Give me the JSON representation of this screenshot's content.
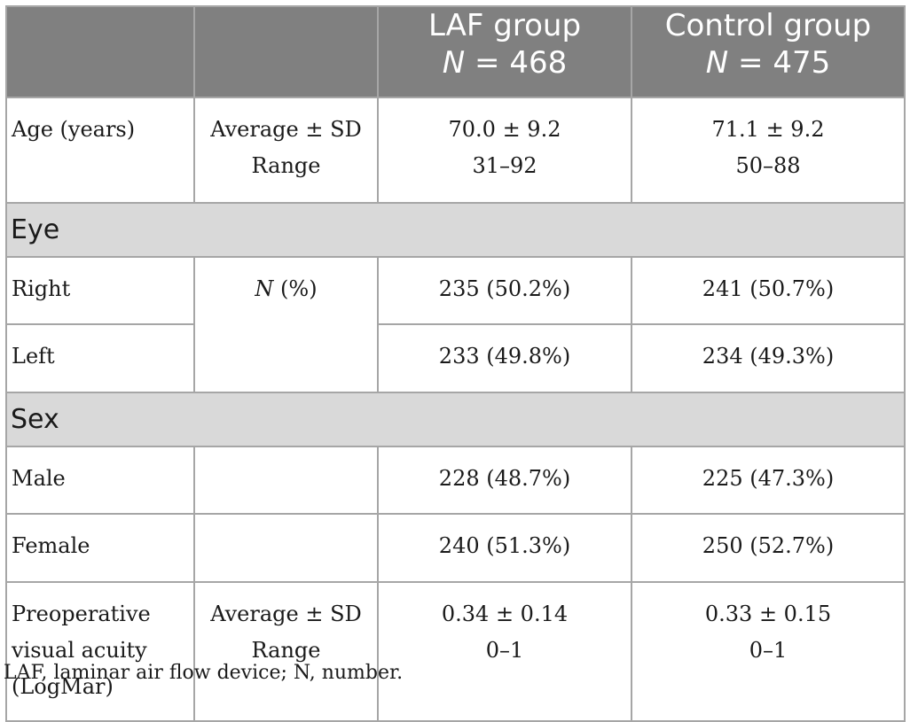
{
  "header": {
    "col1": "",
    "col2": "",
    "col3": {
      "name": "LAF group",
      "n_label": "N",
      "n_value": " = 468"
    },
    "col4": {
      "name": "Control group",
      "n_label": "N",
      "n_value": " = 475"
    }
  },
  "rows": {
    "age": {
      "label": "Age (years)",
      "stat_line1": "Average ± SD",
      "stat_line2": "Range",
      "laf_line1": "70.0 ± 9.2",
      "laf_line2": "31–92",
      "control_line1": "71.1 ± 9.2",
      "control_line2": "50–88"
    },
    "eye_section": "Eye",
    "right": {
      "label": "Right",
      "laf": "235 (50.2%)",
      "control": "241 (50.7%)"
    },
    "left": {
      "label": "Left",
      "laf": "233 (49.8%)",
      "control": "234 (49.3%)"
    },
    "eye_stat": {
      "n": "N",
      "pct": " (%)"
    },
    "sex_section": "Sex",
    "male": {
      "label": "Male",
      "laf": "228 (48.7%)",
      "control": "225 (47.3%)"
    },
    "female": {
      "label": "Female",
      "laf": "240 (51.3%)",
      "control": "250 (52.7%)"
    },
    "preop": {
      "label_line1": "Preoperative",
      "label_line2": "visual acuity",
      "label_line3": "(LogMar)",
      "stat_line1": "Average ± SD",
      "stat_line2": "Range",
      "laf_line1": "0.34 ± 0.14",
      "laf_line2": "0–1",
      "control_line1": "0.33 ± 0.15",
      "control_line2": "0–1"
    }
  },
  "footnote": "LAF, laminar air flow device; N, number."
}
